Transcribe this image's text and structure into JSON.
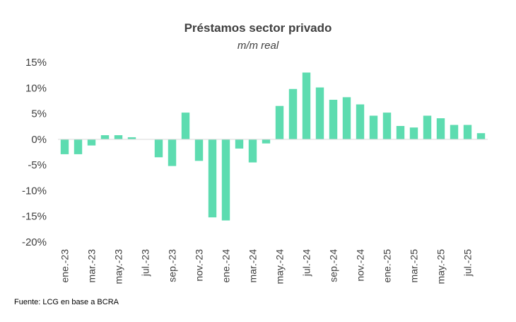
{
  "chart_data": {
    "type": "bar",
    "title": "Préstamos sector privado",
    "subtitle": "m/m real",
    "xlabel": "",
    "ylabel": "",
    "ylim": [
      -20,
      15
    ],
    "yticks": [
      15,
      10,
      5,
      0,
      -5,
      -10,
      -15,
      -20
    ],
    "ytick_labels": [
      "15%",
      "10%",
      "5%",
      "0%",
      "-5%",
      "-10%",
      "-15%",
      "-20%"
    ],
    "xtick_labels": [
      "ene.-23",
      "mar.-23",
      "may.-23",
      "jul.-23",
      "sep.-23",
      "nov.-23",
      "ene.-24",
      "mar.-24",
      "may.-24",
      "jul.-24",
      "sep.-24",
      "nov.-24",
      "ene.-25",
      "mar.-25",
      "may.-25",
      "jul.-25"
    ],
    "series": [
      {
        "name": "Préstamos sector privado m/m real",
        "color": "#5ddcb0",
        "values": [
          -2.9,
          -2.9,
          -1.2,
          0.8,
          0.8,
          0.4,
          0.0,
          -3.5,
          -5.2,
          5.2,
          -4.2,
          -15.2,
          -15.8,
          -1.8,
          -4.5,
          -0.8,
          6.5,
          9.8,
          13.0,
          10.1,
          7.7,
          8.2,
          6.8,
          4.6,
          5.2,
          2.6,
          2.3,
          4.6,
          4.1,
          2.8,
          2.8,
          1.2
        ]
      }
    ],
    "grid": false,
    "legend": "none"
  },
  "source": "Fuente: LCG en base a BCRA"
}
